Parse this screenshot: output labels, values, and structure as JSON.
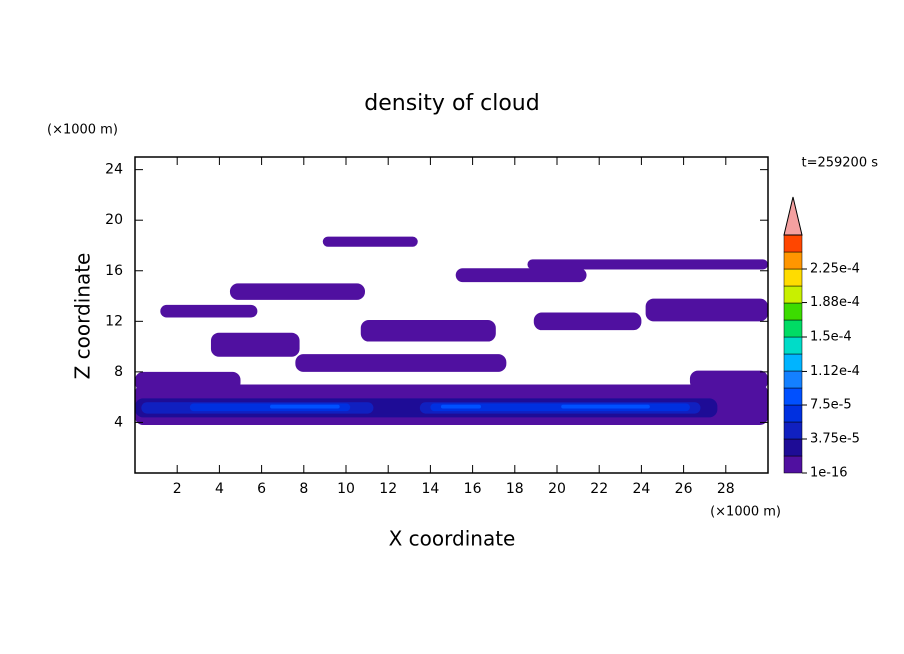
{
  "chart_data": {
    "type": "contour",
    "title": "density of cloud",
    "x_label": "X coordinate",
    "y_label": "Z coordinate",
    "x_unit": "(×1000 m)",
    "y_unit": "(×1000 m)",
    "annotation": "t=259200 s",
    "xlim": [
      0,
      30
    ],
    "ylim": [
      0,
      25
    ],
    "xticks": [
      2,
      4,
      6,
      8,
      10,
      12,
      14,
      16,
      18,
      20,
      22,
      24,
      26,
      28
    ],
    "yticks": [
      4,
      8,
      12,
      16,
      20,
      24
    ],
    "colorbar": {
      "levels": [
        1e-16,
        1.875e-05,
        3.75e-05,
        5.625e-05,
        7.5e-05,
        9.375e-05,
        0.0001125,
        0.00013125,
        0.00015,
        0.00016875,
        0.0001875,
        0.00020625,
        0.000225,
        0.00024375
      ],
      "colors": [
        "#5010a0",
        "#1e0c96",
        "#1020c0",
        "#0030e0",
        "#0050ff",
        "#1480ff",
        "#00b4ff",
        "#00dcc8",
        "#00dc64",
        "#3cdc00",
        "#c8f000",
        "#ffdc00",
        "#ff9600",
        "#ff4600"
      ],
      "extend_color": "#f4a0a0",
      "ticks": [
        {
          "value": 1e-16,
          "label": "1e-16"
        },
        {
          "value": 3.75e-05,
          "label": "3.75e-5"
        },
        {
          "value": 7.5e-05,
          "label": "7.5e-5"
        },
        {
          "value": 0.000112,
          "label": "1.12e-4"
        },
        {
          "value": 0.00015,
          "label": "1.5e-4"
        },
        {
          "value": 0.000188,
          "label": "1.88e-4"
        },
        {
          "value": 0.000225,
          "label": "2.25e-4"
        }
      ]
    },
    "regions": [
      {
        "x": [
          0,
          30
        ],
        "z": [
          3.8,
          7.0
        ],
        "value": 1e-16
      },
      {
        "x": [
          0,
          5
        ],
        "z": [
          6.5,
          8.0
        ],
        "value": 1e-16
      },
      {
        "x": [
          26.3,
          30
        ],
        "z": [
          6.6,
          8.1
        ],
        "value": 1e-16
      },
      {
        "x": [
          7.6,
          17.6
        ],
        "z": [
          8.0,
          9.4
        ],
        "value": 1e-16
      },
      {
        "x": [
          3.6,
          7.8
        ],
        "z": [
          9.2,
          11.1
        ],
        "value": 1e-16
      },
      {
        "x": [
          10.7,
          17.1
        ],
        "z": [
          10.4,
          12.1
        ],
        "value": 1e-16
      },
      {
        "x": [
          18.9,
          24
        ],
        "z": [
          11.3,
          12.7
        ],
        "value": 1e-16
      },
      {
        "x": [
          24.2,
          30
        ],
        "z": [
          12,
          13.8
        ],
        "value": 1e-16
      },
      {
        "x": [
          1.2,
          5.8
        ],
        "z": [
          12.3,
          13.3
        ],
        "value": 1e-16
      },
      {
        "x": [
          4.5,
          10.9
        ],
        "z": [
          13.7,
          15.0
        ],
        "value": 1e-16
      },
      {
        "x": [
          15.2,
          21.4
        ],
        "z": [
          15.1,
          16.2
        ],
        "value": 1e-16
      },
      {
        "x": [
          18.6,
          30
        ],
        "z": [
          16.1,
          16.9
        ],
        "value": 1e-16
      },
      {
        "x": [
          8.9,
          13.4
        ],
        "z": [
          17.9,
          18.7
        ],
        "value": 1e-16
      },
      {
        "x": [
          0,
          27.6
        ],
        "z": [
          4.4,
          5.9
        ],
        "value": 1.875e-05
      },
      {
        "x": [
          0.3,
          11.3
        ],
        "z": [
          4.7,
          5.6
        ],
        "value": 3.75e-05
      },
      {
        "x": [
          13.5,
          26.8
        ],
        "z": [
          4.7,
          5.6
        ],
        "value": 3.75e-05
      },
      {
        "x": [
          2.6,
          10.2
        ],
        "z": [
          4.9,
          5.5
        ],
        "value": 5.625e-05
      },
      {
        "x": [
          14.0,
          26.3
        ],
        "z": [
          4.9,
          5.5
        ],
        "value": 5.625e-05
      },
      {
        "x": [
          6.4,
          9.7
        ],
        "z": [
          5.1,
          5.4
        ],
        "value": 7.5e-05
      },
      {
        "x": [
          14.5,
          16.4
        ],
        "z": [
          5.1,
          5.4
        ],
        "value": 7.5e-05
      },
      {
        "x": [
          20.2,
          24.4
        ],
        "z": [
          5.1,
          5.4
        ],
        "value": 7.5e-05
      }
    ]
  }
}
